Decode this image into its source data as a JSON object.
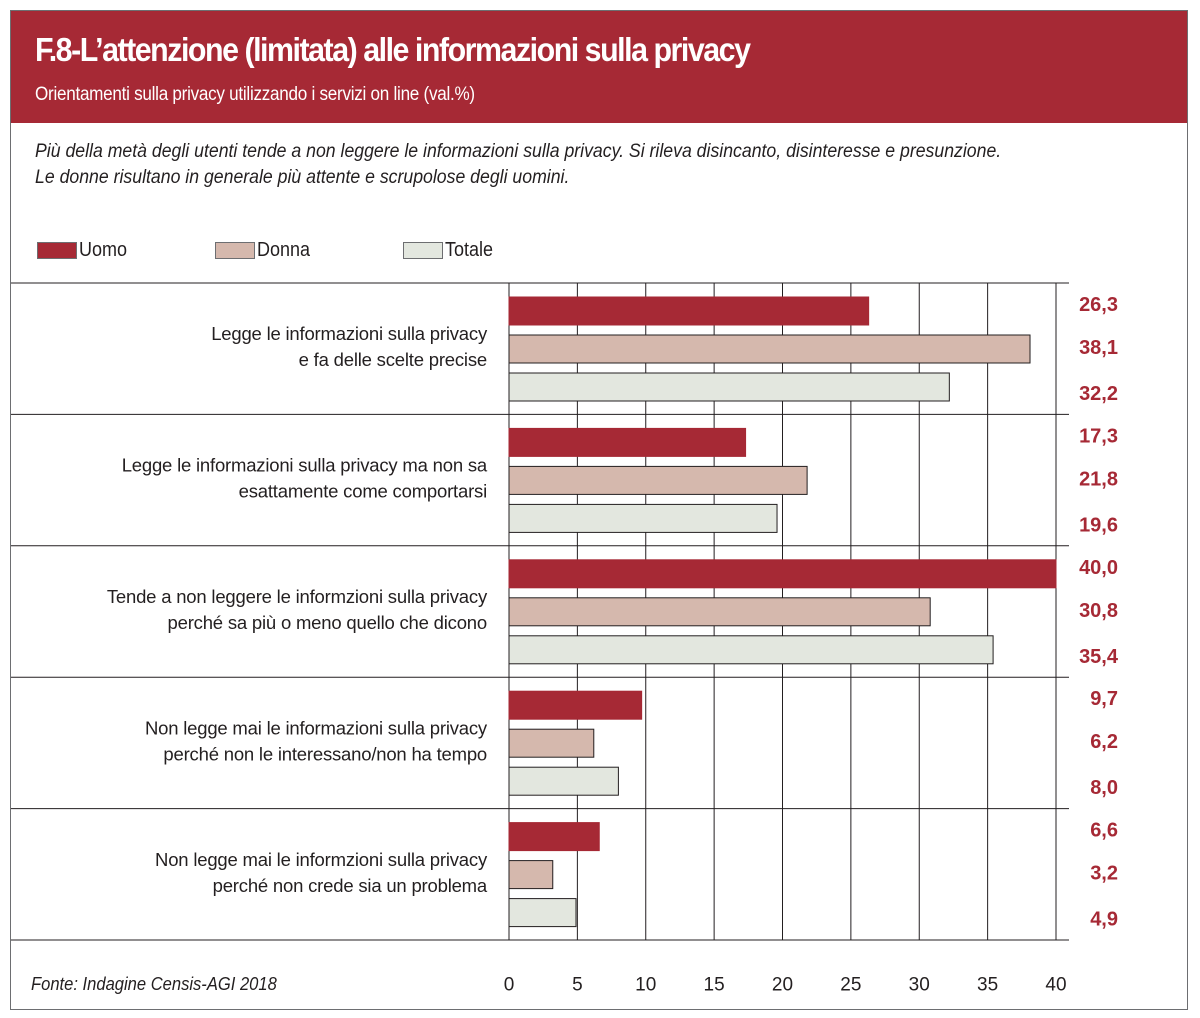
{
  "header": {
    "title": "F.8-L’attenzione (limitata) alle informazioni sulla privacy",
    "subtitle": "Orientamenti sulla privacy utilizzando i  servizi on line (val.%)"
  },
  "lead": {
    "line1": "Più della metà degli utenti tende a non leggere le informazioni sulla privacy. Si rileva disincanto, disinteresse e presunzione.",
    "line2": "Le donne risultano in generale più attente e scrupolose degli uomini."
  },
  "legend": [
    {
      "label": "Uomo",
      "color": "#a62935"
    },
    {
      "label": "Donna",
      "color": "#d5b8ad"
    },
    {
      "label": "Totale",
      "color": "#e3e7df"
    }
  ],
  "source": "Fonte: Indagine Censis-AGI 2018",
  "chart_data": {
    "type": "bar",
    "orientation": "horizontal",
    "categories": [
      [
        "Legge le informazioni sulla privacy",
        "e fa delle scelte precise"
      ],
      [
        "Legge le informazioni sulla privacy ma non sa",
        "esattamente come comportarsi"
      ],
      [
        "Tende a non leggere le informzioni sulla privacy",
        "perché sa più o meno quello che dicono"
      ],
      [
        "Non legge mai le informazioni sulla privacy",
        "perché non le interessano/non ha tempo"
      ],
      [
        "Non legge mai le informzioni sulla privacy",
        "perché non crede sia un problema"
      ]
    ],
    "series": [
      {
        "name": "Uomo",
        "color": "#a62935",
        "values": [
          26.3,
          17.3,
          40.0,
          9.7,
          6.6
        ],
        "labels": [
          "26,3",
          "17,3",
          "40,0",
          "9,7",
          "6,6"
        ]
      },
      {
        "name": "Donna",
        "color": "#d5b8ad",
        "values": [
          38.1,
          21.8,
          30.8,
          6.2,
          3.2
        ],
        "labels": [
          "38,1",
          "21,8",
          "30,8",
          "6,2",
          "3,2"
        ]
      },
      {
        "name": "Totale",
        "color": "#e3e7df",
        "values": [
          32.2,
          19.6,
          35.4,
          8.0,
          4.9
        ],
        "labels": [
          "32,2",
          "19,6",
          "35,4",
          "8,0",
          "4,9"
        ]
      }
    ],
    "xlim": [
      0,
      40
    ],
    "xticks": [
      0,
      5,
      10,
      15,
      20,
      25,
      30,
      35,
      40
    ],
    "grid": true,
    "value_label_color": "#a62935"
  }
}
